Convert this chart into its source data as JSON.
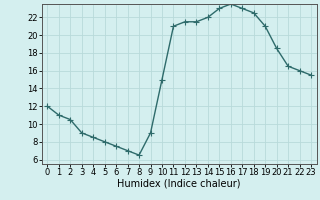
{
  "x": [
    0,
    1,
    2,
    3,
    4,
    5,
    6,
    7,
    8,
    9,
    10,
    11,
    12,
    13,
    14,
    15,
    16,
    17,
    18,
    19,
    20,
    21,
    22,
    23
  ],
  "y": [
    12,
    11,
    10.5,
    9,
    8.5,
    8,
    7.5,
    7,
    6.5,
    9,
    15,
    21,
    21.5,
    21.5,
    22,
    23,
    23.5,
    23,
    22.5,
    21,
    18.5,
    16.5,
    16,
    15.5
  ],
  "line_color": "#2e6b6b",
  "marker": "+",
  "marker_size": 4,
  "marker_linewidth": 0.8,
  "bg_color": "#d4efef",
  "grid_color": "#b8dada",
  "xlabel": "Humidex (Indice chaleur)",
  "xlim": [
    -0.5,
    23.5
  ],
  "ylim": [
    5.5,
    23.5
  ],
  "yticks": [
    6,
    8,
    10,
    12,
    14,
    16,
    18,
    20,
    22
  ],
  "xticks": [
    0,
    1,
    2,
    3,
    4,
    5,
    6,
    7,
    8,
    9,
    10,
    11,
    12,
    13,
    14,
    15,
    16,
    17,
    18,
    19,
    20,
    21,
    22,
    23
  ],
  "tick_fontsize": 6,
  "xlabel_fontsize": 7,
  "line_width": 1.0,
  "axis_color": "#2e6b6b",
  "spine_color": "#555555"
}
